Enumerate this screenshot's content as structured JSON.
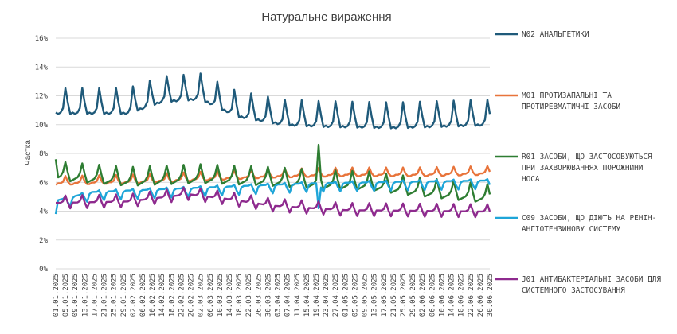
{
  "chart_data": {
    "type": "line",
    "title": "Натуральне  вираження",
    "ylabel": "Частка",
    "xlabel": "",
    "ylim": [
      0,
      16
    ],
    "y_ticks": [
      "0%",
      "2%",
      "4%",
      "6%",
      "8%",
      "10%",
      "12%",
      "14%",
      "16%"
    ],
    "x_ticks": [
      "01.01.2025",
      "05.01.2025",
      "09.01.2025",
      "13.01.2025",
      "17.01.2025",
      "21.01.2025",
      "25.01.2025",
      "29.01.2025",
      "02.02.2025",
      "06.02.2025",
      "10.02.2025",
      "14.02.2025",
      "18.02.2025",
      "22.02.2025",
      "26.02.2025",
      "02.03.2025",
      "06.03.2025",
      "10.03.2025",
      "14.03.2025",
      "18.03.2025",
      "22.03.2025",
      "26.03.2025",
      "30.03.2025",
      "03.04.2025",
      "07.04.2025",
      "11.04.2025",
      "15.04.2025",
      "19.04.2025",
      "23.04.2025",
      "27.04.2025",
      "01.05.2025",
      "05.05.2025",
      "09.05.2025",
      "13.05.2025",
      "17.05.2025",
      "21.05.2025",
      "25.05.2025",
      "29.05.2025",
      "02.06.2025",
      "06.06.2025",
      "10.06.2025",
      "14.06.2025",
      "18.06.2025",
      "22.06.2025",
      "26.06.2025",
      "30.06.2025"
    ],
    "x_tick_step_days": 4,
    "n_days": 181,
    "grid": "horizontal",
    "legend_position": "right",
    "series": [
      {
        "name": "N02  АНАЛЬГЕТИКИ",
        "legend_lines": [
          "N02  АНАЛЬГЕТИКИ"
        ],
        "color": "#1f5a7a",
        "weekday_values": [
          10.7,
          10.6,
          10.7,
          11.0,
          12.4,
          11.4,
          10.6
        ],
        "anchors": [
          [
            0,
            11.2
          ],
          [
            30,
            11.2
          ],
          [
            44,
            12.0
          ],
          [
            60,
            12.2
          ],
          [
            75,
            11.0
          ],
          [
            95,
            10.4
          ],
          [
            110,
            10.3
          ],
          [
            140,
            10.2
          ],
          [
            180,
            10.4
          ]
        ]
      },
      {
        "name": "M01  ПРОТИЗАПАЛЬНІ ТА ПРОТИРЕВМАТИЧНІ ЗАСОБИ",
        "legend_lines": [
          "M01  ПРОТИЗАПАЛЬНІ ТА",
          "ПРОТИРЕВМАТИЧНІ ЗАСОБИ"
        ],
        "color": "#e8743b",
        "weekday_values": [
          6.2,
          6.3,
          6.3,
          6.4,
          6.8,
          6.4,
          6.2
        ],
        "anchors": [
          [
            0,
            6.0
          ],
          [
            30,
            6.1
          ],
          [
            60,
            6.3
          ],
          [
            90,
            6.5
          ],
          [
            120,
            6.6
          ],
          [
            150,
            6.6
          ],
          [
            180,
            6.7
          ]
        ]
      },
      {
        "name": "R01  ЗАСОБИ, ЩО ЗАСТОСОВУЮТЬСЯ ПРИ ЗАХВОРЮВАННЯХ ПОРОЖНИНИ НОСА",
        "legend_lines": [
          "R01  ЗАСОБИ, ЩО ЗАСТОСОВУЮТЬСЯ",
          "ПРИ  ЗАХВОРЮВАННЯХ ПОРОЖНИНИ",
          "НОСА"
        ],
        "color": "#2e7d32",
        "weekday_values": [
          5.8,
          5.9,
          6.0,
          6.3,
          7.0,
          6.3,
          5.7
        ],
        "anchors": [
          [
            0,
            6.6
          ],
          [
            30,
            6.2
          ],
          [
            60,
            6.4
          ],
          [
            90,
            6.2
          ],
          [
            110,
            6.0
          ],
          [
            130,
            5.9
          ],
          [
            150,
            5.5
          ],
          [
            180,
            5.0
          ]
        ],
        "peaks": [
          [
            0,
            7.6
          ],
          [
            109,
            8.6
          ]
        ]
      },
      {
        "name": "C09  ЗАСОБИ, ЩО ДІЮТЬ НА РЕНІН-АНГІОТЕНЗИНОВУ СИСТЕМУ",
        "legend_lines": [
          "C09  ЗАСОБИ, ЩО ДІЮТЬ НА РЕНІН-",
          "АНГІОТЕНЗИНОВУ СИСТЕМУ"
        ],
        "color": "#1ea5d8",
        "weekday_values": [
          5.7,
          5.8,
          5.8,
          5.8,
          5.9,
          5.5,
          5.2
        ],
        "anchors": [
          [
            0,
            4.6
          ],
          [
            15,
            5.2
          ],
          [
            45,
            5.4
          ],
          [
            75,
            5.6
          ],
          [
            105,
            5.8
          ],
          [
            140,
            5.9
          ],
          [
            180,
            6.0
          ]
        ],
        "dips": [
          [
            0,
            3.8
          ],
          [
            109,
            4.2
          ]
        ]
      },
      {
        "name": "J01  АНТИБАКТЕРІАЛЬНІ ЗАСОБИ ДЛЯ СИСТЕМНОГО ЗАСТОСУВАННЯ",
        "legend_lines": [
          "J01  АНТИБАКТЕРІАЛЬНІ ЗАСОБИ ДЛЯ",
          "СИСТЕМНОГО ЗАСТОСУВАННЯ"
        ],
        "color": "#8e2a8e",
        "weekday_values": [
          4.4,
          4.4,
          4.4,
          4.5,
          4.9,
          4.4,
          4.0
        ],
        "anchors": [
          [
            0,
            4.6
          ],
          [
            30,
            4.7
          ],
          [
            55,
            5.2
          ],
          [
            70,
            4.9
          ],
          [
            90,
            4.4
          ],
          [
            120,
            4.1
          ],
          [
            180,
            4.0
          ]
        ]
      }
    ]
  }
}
